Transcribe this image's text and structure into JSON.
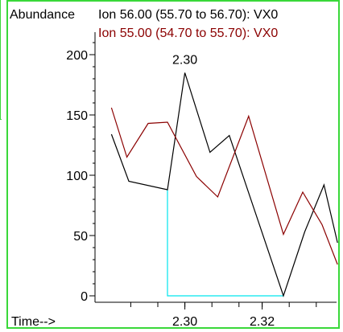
{
  "colors": {
    "frame": "#39d839",
    "axis": "#000000",
    "series1": "#000000",
    "series2": "#8b0000",
    "integration": "#00e5ee"
  },
  "chart_data": {
    "type": "line",
    "ylabel": "Abundance",
    "xlabel": "Time-->",
    "ylim": [
      0,
      220
    ],
    "xlim": [
      2.278,
      2.338
    ],
    "y_ticks": [
      0,
      50,
      100,
      150,
      200
    ],
    "y_tick_labels": [
      "0",
      "50",
      "100",
      "150",
      "200"
    ],
    "x_tick_labels": [
      {
        "value": 2.3,
        "label": "2.30"
      },
      {
        "value": 2.32,
        "label": "2.32"
      }
    ],
    "x_minor_ticks": [
      2.286,
      2.293,
      2.3,
      2.307,
      2.314,
      2.32,
      2.327,
      2.334
    ],
    "legend_position": "top",
    "series": [
      {
        "name": "Ion  56.00 (55.70 to 56.70): VX0",
        "color": "#000000",
        "x": [
          2.281,
          2.2855,
          2.2955,
          2.3,
          2.3065,
          2.3115,
          2.3255,
          2.331,
          2.336,
          2.3395
        ],
        "y": [
          134,
          95,
          88,
          185,
          119,
          133,
          0,
          53,
          92,
          44
        ]
      },
      {
        "name": "Ion  55.00 (54.70 to 55.70): VX0",
        "color": "#8b0000",
        "x": [
          2.281,
          2.285,
          2.2905,
          2.2955,
          2.303,
          2.3085,
          2.3165,
          2.3255,
          2.3305,
          2.3355,
          2.3395
        ],
        "y": [
          156,
          115,
          143,
          144,
          99,
          82,
          149,
          51,
          86,
          59,
          26
        ]
      }
    ],
    "annotations": [
      {
        "text": "2.30",
        "x": 2.3,
        "y": 185
      }
    ],
    "integration_path": [
      {
        "x": 2.2955,
        "y": 88
      },
      {
        "x": 2.2955,
        "y": 0
      },
      {
        "x": 2.3255,
        "y": 0
      }
    ]
  }
}
